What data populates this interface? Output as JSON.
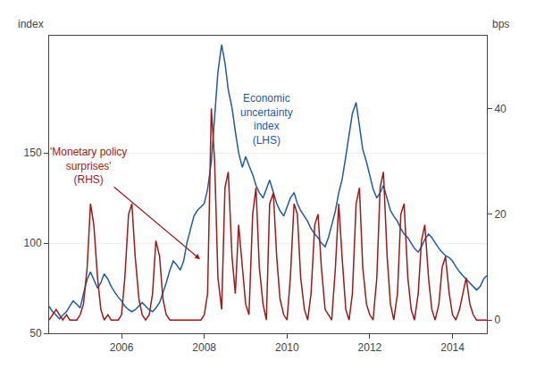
{
  "chart_data": {
    "type": "line",
    "ylabel": "index",
    "y2label": "bps",
    "xlim": [
      2004.25,
      2014.83
    ],
    "xticks": [
      2006,
      2008,
      2010,
      2012,
      2014
    ],
    "ylim": [
      50,
      215
    ],
    "yticks": [
      50,
      100,
      150
    ],
    "y2lim": [
      -2.5,
      53.75
    ],
    "y2ticks": [
      0,
      20,
      40
    ],
    "grid": "y",
    "annotations": [
      {
        "text": "Economic\nuncertainty\nindex\n(LHS)",
        "color": "#1f5baa"
      },
      {
        "text": "'Monetary policy\nsurprises'\n(RHS)",
        "color": "#9e1a1a"
      }
    ],
    "series": [
      {
        "color": "#1f5baa",
        "axis": "y",
        "x": [
          2004.25,
          2004.33,
          2004.42,
          2004.5,
          2004.58,
          2004.67,
          2004.75,
          2004.83,
          2004.92,
          2005.0,
          2005.08,
          2005.17,
          2005.25,
          2005.33,
          2005.42,
          2005.5,
          2005.58,
          2005.67,
          2005.75,
          2005.83,
          2005.92,
          2006.0,
          2006.08,
          2006.17,
          2006.25,
          2006.33,
          2006.42,
          2006.5,
          2006.58,
          2006.67,
          2006.75,
          2006.83,
          2006.92,
          2007.0,
          2007.08,
          2007.17,
          2007.25,
          2007.33,
          2007.42,
          2007.5,
          2007.58,
          2007.67,
          2007.75,
          2007.83,
          2007.92,
          2008.0,
          2008.08,
          2008.17,
          2008.25,
          2008.33,
          2008.42,
          2008.5,
          2008.58,
          2008.67,
          2008.75,
          2008.83,
          2008.92,
          2009.0,
          2009.08,
          2009.17,
          2009.25,
          2009.33,
          2009.42,
          2009.5,
          2009.58,
          2009.67,
          2009.75,
          2009.83,
          2009.92,
          2010.0,
          2010.08,
          2010.17,
          2010.25,
          2010.33,
          2010.42,
          2010.5,
          2010.58,
          2010.67,
          2010.75,
          2010.83,
          2010.92,
          2011.0,
          2011.08,
          2011.17,
          2011.25,
          2011.33,
          2011.42,
          2011.5,
          2011.58,
          2011.67,
          2011.75,
          2011.83,
          2011.92,
          2012.0,
          2012.08,
          2012.17,
          2012.25,
          2012.33,
          2012.42,
          2012.5,
          2012.58,
          2012.67,
          2012.75,
          2012.83,
          2012.92,
          2013.0,
          2013.08,
          2013.17,
          2013.25,
          2013.33,
          2013.42,
          2013.5,
          2013.58,
          2013.67,
          2013.75,
          2013.83,
          2013.92,
          2014.0,
          2014.08,
          2014.17,
          2014.25,
          2014.33,
          2014.42,
          2014.5,
          2014.58,
          2014.67,
          2014.75,
          2014.83
        ],
        "values": [
          65,
          62,
          60,
          58,
          60,
          62,
          65,
          68,
          66,
          64,
          72,
          80,
          84,
          80,
          75,
          78,
          83,
          80,
          76,
          73,
          70,
          68,
          65,
          63,
          62,
          63,
          65,
          67,
          65,
          63,
          62,
          64,
          67,
          72,
          78,
          85,
          90,
          88,
          85,
          90,
          100,
          108,
          115,
          118,
          120,
          122,
          130,
          145,
          170,
          195,
          210,
          200,
          185,
          175,
          162,
          150,
          142,
          148,
          143,
          138,
          132,
          128,
          125,
          130,
          135,
          128,
          122,
          118,
          115,
          120,
          125,
          128,
          122,
          118,
          115,
          112,
          108,
          105,
          103,
          100,
          98,
          103,
          110,
          118,
          128,
          135,
          148,
          160,
          172,
          178,
          165,
          152,
          145,
          138,
          130,
          125,
          128,
          132,
          125,
          118,
          115,
          112,
          108,
          105,
          103,
          100,
          97,
          95,
          98,
          102,
          105,
          103,
          100,
          97,
          95,
          93,
          92,
          90,
          87,
          84,
          82,
          80,
          78,
          76,
          74,
          76,
          80,
          82
        ]
      },
      {
        "color": "#9e1a1a",
        "axis": "y2",
        "x": [
          2004.25,
          2004.33,
          2004.42,
          2004.5,
          2004.58,
          2004.67,
          2004.75,
          2004.83,
          2004.92,
          2005.0,
          2005.08,
          2005.17,
          2005.25,
          2005.33,
          2005.42,
          2005.5,
          2005.58,
          2005.67,
          2005.75,
          2005.83,
          2005.92,
          2006.0,
          2006.08,
          2006.17,
          2006.25,
          2006.33,
          2006.42,
          2006.5,
          2006.58,
          2006.67,
          2006.75,
          2006.83,
          2006.92,
          2007.0,
          2007.08,
          2007.17,
          2007.25,
          2007.33,
          2007.42,
          2007.5,
          2007.58,
          2007.67,
          2007.75,
          2007.83,
          2007.92,
          2008.0,
          2008.08,
          2008.17,
          2008.25,
          2008.33,
          2008.42,
          2008.5,
          2008.58,
          2008.67,
          2008.75,
          2008.83,
          2008.92,
          2009.0,
          2009.08,
          2009.17,
          2009.25,
          2009.33,
          2009.42,
          2009.5,
          2009.58,
          2009.67,
          2009.75,
          2009.83,
          2009.92,
          2010.0,
          2010.08,
          2010.17,
          2010.25,
          2010.33,
          2010.42,
          2010.5,
          2010.58,
          2010.67,
          2010.75,
          2010.83,
          2010.92,
          2011.0,
          2011.08,
          2011.17,
          2011.25,
          2011.33,
          2011.42,
          2011.5,
          2011.58,
          2011.67,
          2011.75,
          2011.83,
          2011.92,
          2012.0,
          2012.08,
          2012.17,
          2012.25,
          2012.33,
          2012.42,
          2012.5,
          2012.58,
          2012.67,
          2012.75,
          2012.83,
          2012.92,
          2013.0,
          2013.08,
          2013.17,
          2013.25,
          2013.33,
          2013.42,
          2013.5,
          2013.58,
          2013.67,
          2013.75,
          2013.83,
          2013.92,
          2014.0,
          2014.08,
          2014.17,
          2014.25,
          2014.33,
          2014.42,
          2014.5,
          2014.58,
          2014.67,
          2014.75,
          2014.83
        ],
        "values": [
          0,
          1,
          2,
          1,
          0,
          1,
          0,
          0,
          0,
          1,
          3,
          10,
          22,
          18,
          8,
          2,
          0,
          1,
          0,
          0,
          0,
          1,
          8,
          20,
          22,
          12,
          4,
          1,
          0,
          1,
          5,
          15,
          12,
          4,
          1,
          0,
          0,
          0,
          0,
          0,
          0,
          0,
          0,
          0,
          0,
          1,
          5,
          40,
          30,
          8,
          2,
          25,
          28,
          12,
          5,
          18,
          10,
          3,
          1,
          20,
          25,
          10,
          3,
          0,
          22,
          24,
          12,
          4,
          1,
          0,
          8,
          22,
          20,
          8,
          2,
          0,
          5,
          18,
          20,
          10,
          2,
          1,
          0,
          10,
          22,
          12,
          2,
          0,
          5,
          22,
          25,
          10,
          3,
          1,
          0,
          8,
          25,
          28,
          12,
          3,
          0,
          5,
          20,
          22,
          8,
          2,
          0,
          5,
          15,
          18,
          8,
          2,
          0,
          3,
          10,
          12,
          5,
          1,
          0,
          2,
          5,
          8,
          3,
          1,
          0,
          0,
          0,
          0
        ]
      }
    ]
  }
}
